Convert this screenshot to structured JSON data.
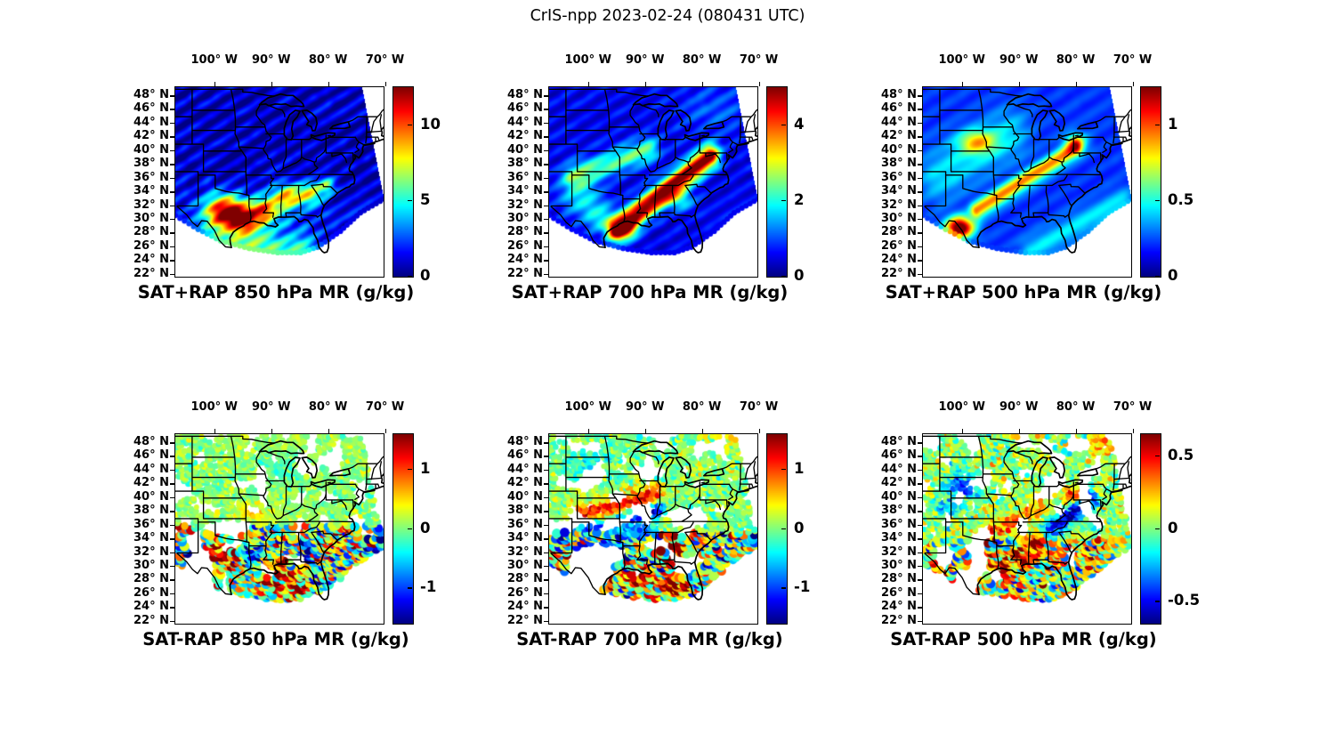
{
  "figure": {
    "title": "CrIS-npp 2023-02-24 (080431 UTC)",
    "background": "#ffffff",
    "text_color": "#000000"
  },
  "chart_data": {
    "type": "heatmap",
    "description": "Six-panel satellite sounding figure. Top row: CrIS satellite + RAP model water-vapor mixing ratio (g/kg) retrieved swath at 850, 700 and 500 hPa over the central/eastern US. Bottom row: SAT minus RAP mixing-ratio difference scatter at the same levels. Jet colormap, state borders overlaid, plate-carree lon/lat axes.",
    "projection": {
      "lon_range": [
        -107.0,
        -70.4
      ],
      "lat_range": [
        21.7,
        49.3
      ]
    },
    "lon_ticks": [
      {
        "label": "100° W",
        "lon": -100
      },
      {
        "label": "90° W",
        "lon": -90
      },
      {
        "label": "80° W",
        "lon": -80
      },
      {
        "label": "70° W",
        "lon": -70
      }
    ],
    "lat_ticks": [
      {
        "label": "48° N",
        "lat": 48
      },
      {
        "label": "46° N",
        "lat": 46
      },
      {
        "label": "44° N",
        "lat": 44
      },
      {
        "label": "42° N",
        "lat": 42
      },
      {
        "label": "40° N",
        "lat": 40
      },
      {
        "label": "38° N",
        "lat": 38
      },
      {
        "label": "36° N",
        "lat": 36
      },
      {
        "label": "34° N",
        "lat": 34
      },
      {
        "label": "32° N",
        "lat": 32
      },
      {
        "label": "30° N",
        "lat": 30
      },
      {
        "label": "28° N",
        "lat": 28
      },
      {
        "label": "26° N",
        "lat": 26
      },
      {
        "label": "24° N",
        "lat": 24
      },
      {
        "label": "22° N",
        "lat": 22
      }
    ],
    "colormap": "jet",
    "swath_polygon": [
      [
        -107,
        49.4
      ],
      [
        -74.2,
        49.4
      ],
      [
        -70.3,
        33.0
      ],
      [
        -74.5,
        31.0
      ],
      [
        -78,
        28.3
      ],
      [
        -82,
        26.0
      ],
      [
        -85,
        25.2
      ],
      [
        -89,
        25.2
      ],
      [
        -94,
        25.8
      ],
      [
        -99,
        26.9
      ],
      [
        -103,
        28.6
      ],
      [
        -107,
        30.6
      ]
    ],
    "panels": [
      {
        "id": "sat-plus-rap-850",
        "title": "SAT+RAP 850 hPa MR (g/kg)",
        "render": "field",
        "summary": "Deep blue (~1 g/kg) over northern plains and Great Lakes; 8-12 g/kg red maximum over Texas, Louisiana and the Gulf states south of 36N.",
        "colorbar": {
          "min": 0,
          "max": 12.5,
          "ticks": [
            {
              "label": "0",
              "value": 0
            },
            {
              "label": "5",
              "value": 5
            },
            {
              "label": "10",
              "value": 10
            }
          ]
        },
        "base": 0.8,
        "noise": 0.25,
        "ripple": {
          "wl": 2.0,
          "amp": 0.35
        },
        "features": [
          {
            "type": "blob",
            "lon": -94.0,
            "lat": 27.0,
            "sx": 10.0,
            "sy": 4.5,
            "amp": 2.6
          },
          {
            "type": "blob",
            "lon": -98.7,
            "lat": 31.3,
            "sx": 2.4,
            "sy": 1.7,
            "amp": 9.5
          },
          {
            "type": "blob",
            "lon": -95.0,
            "lat": 30.2,
            "sx": 2.2,
            "sy": 1.5,
            "amp": 8.5
          },
          {
            "type": "blob",
            "lon": -91.3,
            "lat": 31.4,
            "sx": 1.6,
            "sy": 1.2,
            "amp": 6.5
          },
          {
            "type": "blob",
            "lon": -87.6,
            "lat": 33.3,
            "sx": 1.9,
            "sy": 1.3,
            "amp": 7.0
          },
          {
            "type": "blob",
            "lon": -83.6,
            "lat": 33.9,
            "sx": 1.6,
            "sy": 1.1,
            "amp": 6.0
          },
          {
            "type": "blob",
            "lon": -80.6,
            "lat": 35.0,
            "sx": 1.3,
            "sy": 0.9,
            "amp": 4.5
          },
          {
            "type": "band",
            "a": [
              -100,
              25.8
            ],
            "b": [
              -84,
              25.2
            ],
            "sigma": 1.6,
            "amp": 3.0
          }
        ]
      },
      {
        "id": "sat-plus-rap-700",
        "title": "SAT+RAP 700 hPa MR (g/kg)",
        "render": "field",
        "summary": "Mostly 0-1 g/kg blue; dark-red >4.5 g/kg diagonal moist band from Louisiana northeast to Virginia; secondary 2 g/kg yellow-green band across Kansas-Missouri.",
        "colorbar": {
          "min": 0,
          "max": 5,
          "ticks": [
            {
              "label": "0",
              "value": 0
            },
            {
              "label": "2",
              "value": 2
            },
            {
              "label": "4",
              "value": 4
            }
          ]
        },
        "base": 0.55,
        "noise": 0.14,
        "ripple": {
          "wl": 2.2,
          "amp": 0.22
        },
        "features": [
          {
            "type": "band",
            "a": [
              -95.2,
              28.6
            ],
            "b": [
              -78.8,
              39.3
            ],
            "sigma": 1.15,
            "amp": 4.6
          },
          {
            "type": "band",
            "a": [
              -103,
              36.3
            ],
            "b": [
              -89.5,
              40.3
            ],
            "sigma": 1.3,
            "amp": 1.8
          },
          {
            "type": "blob",
            "lon": -101.3,
            "lat": 33.2,
            "sx": 2.6,
            "sy": 2.0,
            "amp": 1.25
          },
          {
            "type": "blob",
            "lon": -97.8,
            "lat": 30.2,
            "sx": 2.0,
            "sy": 1.5,
            "amp": 1.2
          },
          {
            "type": "blob",
            "lon": -84.2,
            "lat": 33.0,
            "sx": 1.7,
            "sy": 1.1,
            "amp": 1.4
          },
          {
            "type": "blob",
            "lon": -93.5,
            "lat": 28.6,
            "sx": 1.4,
            "sy": 1.0,
            "amp": 2.2
          },
          {
            "type": "blob",
            "lon": -78.0,
            "lat": 46.0,
            "sx": 5.0,
            "sy": 3.0,
            "amp": 0.45
          }
        ]
      },
      {
        "id": "sat-plus-rap-500",
        "title": "SAT+RAP 500 hPa MR (g/kg)",
        "render": "field",
        "summary": "Blue background ~0.2 g/kg with diagonal cyan scan streaks; >1.2 g/kg dark-red maximum over south Texas near 29N 100W; orange streak from Texas toward Lake Erie; yellow patch over Nebraska.",
        "colorbar": {
          "min": 0,
          "max": 1.25,
          "ticks": [
            {
              "label": "0",
              "value": 0
            },
            {
              "label": "0.5",
              "value": 0.5
            },
            {
              "label": "1",
              "value": 1
            }
          ]
        },
        "base": 0.22,
        "noise": 0.05,
        "ripple": {
          "wl": 2.6,
          "amp": 0.11
        },
        "features": [
          {
            "type": "blob",
            "lon": -100.6,
            "lat": 28.9,
            "sx": 1.7,
            "sy": 1.1,
            "amp": 1.2
          },
          {
            "type": "band",
            "a": [
              -97.6,
              31.4
            ],
            "b": [
              -80.3,
              40.4
            ],
            "sigma": 0.85,
            "amp": 0.72
          },
          {
            "type": "blob",
            "lon": -97.6,
            "lat": 41.4,
            "sx": 2.3,
            "sy": 1.2,
            "amp": 0.5
          },
          {
            "type": "band",
            "a": [
              -104,
              36.5
            ],
            "b": [
              -92,
              42.5
            ],
            "sigma": 2.6,
            "amp": 0.22
          },
          {
            "type": "blob",
            "lon": -80.2,
            "lat": 41.3,
            "sx": 1.4,
            "sy": 1.0,
            "amp": 0.5
          },
          {
            "type": "band",
            "a": [
              -88,
              25.6
            ],
            "b": [
              -72,
              32.6
            ],
            "sigma": 1.4,
            "amp": 0.22
          }
        ]
      },
      {
        "id": "sat-minus-rap-850",
        "title": "SAT-RAP 850 hPa MR (g/kg)",
        "render": "dots",
        "summary": "Near-zero (green) differences north of 36N; large mixed +/-1.5 g/kg red and blue dot clusters across Texas, the Gulf coast, Alabama and Georgia.",
        "colorbar": {
          "min": -1.6,
          "max": 1.6,
          "ticks": [
            {
              "label": "1",
              "value": 1
            },
            {
              "label": "0",
              "value": 0
            },
            {
              "label": "-1",
              "value": -1
            }
          ]
        },
        "seed": 11,
        "dot": {
          "south_lat": 36,
          "north_sigma": 0.16,
          "south_sigma": 0.85,
          "north_bias": 0.05
        },
        "gaps": [
          {
            "lon": -102.6,
            "lat": 29.8,
            "rx": 2.6,
            "ry": 3.2
          },
          {
            "lon": -97.8,
            "lat": 35.6,
            "rx": 4.5,
            "ry": 1.3
          },
          {
            "lon": -103.5,
            "lat": 33.5,
            "rx": 1.8,
            "ry": 2.0
          },
          {
            "lon": -85.2,
            "lat": 30.9,
            "rx": 1.6,
            "ry": 1.0
          }
        ],
        "features": [
          {
            "type": "blob",
            "lon": -99.2,
            "lat": 32.6,
            "sx": 1.6,
            "sy": 1.3,
            "amp": 1.2
          },
          {
            "type": "blob",
            "lon": -96.2,
            "lat": 30.6,
            "sx": 1.4,
            "sy": 1.0,
            "amp": 1.1
          },
          {
            "type": "blob",
            "lon": -93.6,
            "lat": 31.4,
            "sx": 1.3,
            "sy": 1.0,
            "amp": -1.5
          },
          {
            "type": "blob",
            "lon": -90.6,
            "lat": 28.8,
            "sx": 2.0,
            "sy": 1.0,
            "amp": 1.3
          },
          {
            "type": "blob",
            "lon": -86.0,
            "lat": 27.4,
            "sx": 1.6,
            "sy": 1.0,
            "amp": 1.7
          },
          {
            "type": "blob",
            "lon": -83.6,
            "lat": 32.9,
            "sx": 1.6,
            "sy": 1.2,
            "amp": -1.4
          },
          {
            "type": "blob",
            "lon": -81.6,
            "lat": 33.6,
            "sx": 1.2,
            "sy": 0.9,
            "amp": 1.2
          },
          {
            "type": "blob",
            "lon": -88.2,
            "lat": 30.3,
            "sx": 1.5,
            "sy": 0.9,
            "amp": 0.8
          },
          {
            "type": "blob",
            "lon": -93.0,
            "lat": 37.8,
            "sx": 2.5,
            "sy": 1.0,
            "amp": 0.45
          },
          {
            "type": "blob",
            "lon": -87.5,
            "lat": 44.5,
            "sx": 2.0,
            "sy": 1.5,
            "amp": -0.25
          }
        ]
      },
      {
        "id": "sat-minus-rap-700",
        "title": "SAT-RAP 700 hPa MR (g/kg)",
        "render": "dots",
        "summary": "Positive (orange) arc across Kansas-Missouri with adjacent negative (blue) arc; strong +1.5 g/kg dark-red clusters over Alabama-Georgia and the Gulf coast; large data gap over central Texas.",
        "colorbar": {
          "min": -1.6,
          "max": 1.6,
          "ticks": [
            {
              "label": "1",
              "value": 1
            },
            {
              "label": "0",
              "value": 0
            },
            {
              "label": "-1",
              "value": -1
            }
          ]
        },
        "seed": 23,
        "dot": {
          "south_lat": 35,
          "north_sigma": 0.22,
          "south_sigma": 0.8,
          "north_bias": 0.02
        },
        "gaps": [
          {
            "lon": -99.8,
            "lat": 29.8,
            "rx": 4.2,
            "ry": 3.6
          },
          {
            "lon": -95.5,
            "lat": 31.8,
            "rx": 2.2,
            "ry": 1.6
          },
          {
            "lon": -83.2,
            "lat": 30.0,
            "rx": 2.2,
            "ry": 1.3
          },
          {
            "lon": -88.8,
            "lat": 33.2,
            "rx": 1.6,
            "ry": 1.1
          },
          {
            "lon": -82.5,
            "lat": 37.2,
            "rx": 3.5,
            "ry": 1.6
          }
        ],
        "features": [
          {
            "type": "band",
            "a": [
              -102,
              37.3
            ],
            "b": [
              -88.4,
              40.6
            ],
            "sigma": 1.05,
            "amp": 1.15
          },
          {
            "type": "band",
            "a": [
              -100.5,
              35.3
            ],
            "b": [
              -87.6,
              38.4
            ],
            "sigma": 0.85,
            "amp": -1.35
          },
          {
            "type": "band",
            "a": [
              -97.5,
              32.6
            ],
            "b": [
              -89.5,
              35.3
            ],
            "sigma": 1.0,
            "amp": -0.75
          },
          {
            "type": "blob",
            "lon": -85.3,
            "lat": 32.4,
            "sx": 1.7,
            "sy": 1.3,
            "amp": 1.6
          },
          {
            "type": "blob",
            "lon": -89.6,
            "lat": 28.7,
            "sx": 1.5,
            "sy": 0.9,
            "amp": 1.25
          },
          {
            "type": "blob",
            "lon": -84.6,
            "lat": 27.7,
            "sx": 1.4,
            "sy": 1.0,
            "amp": 1.8
          },
          {
            "type": "blob",
            "lon": -92.7,
            "lat": 28.6,
            "sx": 1.6,
            "sy": 0.9,
            "amp": 1.0
          },
          {
            "type": "blob",
            "lon": -99.2,
            "lat": 30.4,
            "sx": 1.3,
            "sy": 0.9,
            "amp": 0.8
          },
          {
            "type": "blob",
            "lon": -100.0,
            "lat": 45.5,
            "sx": 3.0,
            "sy": 2.0,
            "amp": -0.35
          },
          {
            "type": "blob",
            "lon": -75.0,
            "lat": 48.5,
            "sx": 2.5,
            "sy": 1.5,
            "amp": 0.3
          }
        ]
      },
      {
        "id": "sat-minus-rap-500",
        "title": "SAT-RAP 500 hPa MR (g/kg)",
        "render": "dots",
        "summary": "Near-zero green field with dark-blue -0.6 g/kg band along the Appalachians from Tennessee to Pennsylvania, blue cluster over Nebraska, and +0.6 dark-red dots over Mississippi, Alabama and the Gulf coast.",
        "colorbar": {
          "min": -0.65,
          "max": 0.65,
          "ticks": [
            {
              "label": "0.5",
              "value": 0.5
            },
            {
              "label": "0",
              "value": 0
            },
            {
              "label": "-0.5",
              "value": -0.5
            }
          ]
        },
        "seed": 37,
        "dot": {
          "south_lat": 34,
          "north_sigma": 0.12,
          "south_sigma": 0.28,
          "north_bias": 0.03
        },
        "gaps": [
          {
            "lon": -99.3,
            "lat": 27.6,
            "rx": 2.6,
            "ry": 1.6
          },
          {
            "lon": -103.3,
            "lat": 31.5,
            "rx": 2.0,
            "ry": 2.0
          },
          {
            "lon": -94.2,
            "lat": 28.6,
            "rx": 1.6,
            "ry": 1.0
          }
        ],
        "features": [
          {
            "type": "band",
            "a": [
              -84.6,
              35.4
            ],
            "b": [
              -77.6,
              39.9
            ],
            "sigma": 0.95,
            "amp": -0.6
          },
          {
            "type": "band",
            "a": [
              -97.6,
              33.9
            ],
            "b": [
              -86.4,
              38.3
            ],
            "sigma": 0.95,
            "amp": 0.3
          },
          {
            "type": "blob",
            "lon": -99.9,
            "lat": 41.9,
            "sx": 1.9,
            "sy": 1.2,
            "amp": -0.5
          },
          {
            "type": "blob",
            "lon": -102.3,
            "lat": 38.8,
            "sx": 1.6,
            "sy": 1.0,
            "amp": -0.35
          },
          {
            "type": "blob",
            "lon": -86.6,
            "lat": 33.3,
            "sx": 1.5,
            "sy": 1.1,
            "amp": 0.62
          },
          {
            "type": "blob",
            "lon": -89.6,
            "lat": 31.4,
            "sx": 1.6,
            "sy": 0.9,
            "amp": 0.66
          },
          {
            "type": "blob",
            "lon": -92.7,
            "lat": 30.4,
            "sx": 1.3,
            "sy": 0.9,
            "amp": 0.5
          },
          {
            "type": "blob",
            "lon": -97.7,
            "lat": 29.9,
            "sx": 1.3,
            "sy": 0.9,
            "amp": 0.45
          },
          {
            "type": "blob",
            "lon": -80.4,
            "lat": 40.4,
            "sx": 1.3,
            "sy": 0.9,
            "amp": 0.4
          },
          {
            "type": "blob",
            "lon": -74.5,
            "lat": 48.3,
            "sx": 2.5,
            "sy": 1.5,
            "amp": 0.25
          }
        ]
      }
    ]
  }
}
